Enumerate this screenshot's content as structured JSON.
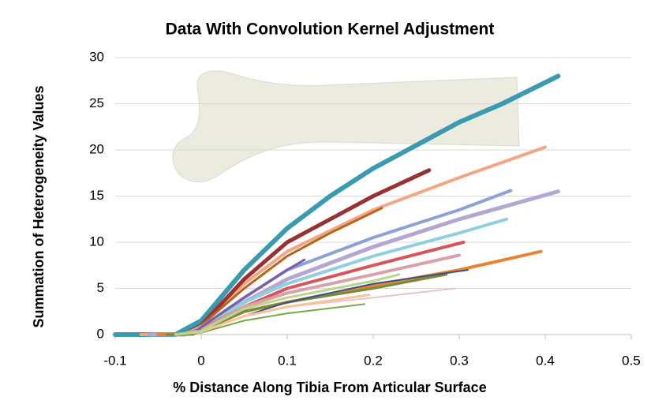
{
  "chart_data": {
    "type": "line",
    "title": "Data With Convolution Kernel Adjustment",
    "x_label": "% Distance Along Tibia From Articular Surface",
    "y_label": "Summation of Heterogeneity Values",
    "xlim": [
      -0.1,
      0.5
    ],
    "xticks": [
      -0.1,
      0,
      0.1,
      0.2,
      0.3,
      0.4,
      0.5
    ],
    "ylim": [
      0,
      30
    ],
    "yticks": [
      0,
      5,
      10,
      15,
      20,
      25,
      30
    ],
    "grid": true,
    "series": [
      {
        "color": "#3a9bb0",
        "x": [
          -0.1,
          -0.03,
          0,
          0.05,
          0.1,
          0.15,
          0.2,
          0.25,
          0.3,
          0.35,
          0.4,
          0.415
        ],
        "values": [
          0,
          0,
          1.5,
          7,
          11.5,
          15,
          18,
          20.5,
          23,
          25,
          27.3,
          28
        ]
      },
      {
        "color": "#f4a582",
        "x": [
          -0.07,
          -0.02,
          0,
          0.05,
          0.1,
          0.2,
          0.3,
          0.4
        ],
        "values": [
          0,
          0,
          1,
          5.5,
          9,
          13.5,
          17,
          20.3
        ]
      },
      {
        "color": "#983232",
        "x": [
          -0.06,
          -0.02,
          0,
          0.05,
          0.1,
          0.15,
          0.2,
          0.265
        ],
        "values": [
          0,
          0,
          1,
          6,
          10,
          12.5,
          15,
          17.8
        ]
      },
      {
        "color": "#b5651d",
        "x": [
          -0.05,
          -0.02,
          0,
          0.05,
          0.1,
          0.15,
          0.21
        ],
        "values": [
          0,
          0,
          1,
          5,
          8.5,
          11,
          13.7
        ]
      },
      {
        "color": "#8ea1d6",
        "x": [
          -0.06,
          -0.02,
          0,
          0.05,
          0.1,
          0.2,
          0.3,
          0.36
        ],
        "values": [
          0,
          0,
          0.8,
          4,
          7,
          10.5,
          13.5,
          15.6
        ]
      },
      {
        "color": "#b4a7d0",
        "x": [
          -0.06,
          -0.02,
          0,
          0.05,
          0.1,
          0.2,
          0.3,
          0.415
        ],
        "values": [
          0,
          0,
          0.8,
          3.5,
          6,
          9.5,
          12.5,
          15.5
        ]
      },
      {
        "color": "#8ecfe0",
        "x": [
          -0.05,
          -0.02,
          0,
          0.05,
          0.1,
          0.2,
          0.3,
          0.355
        ],
        "values": [
          0,
          0,
          0.6,
          3.5,
          5.5,
          8.5,
          11,
          12.5
        ]
      },
      {
        "color": "#d9545a",
        "x": [
          -0.05,
          -0.02,
          0,
          0.05,
          0.1,
          0.2,
          0.305
        ],
        "values": [
          0,
          0,
          0.6,
          3,
          5,
          7.5,
          10
        ]
      },
      {
        "color": "#d9a0a8",
        "x": [
          -0.05,
          -0.02,
          0,
          0.05,
          0.1,
          0.2,
          0.3
        ],
        "values": [
          0,
          0,
          0.5,
          3,
          4.5,
          6.5,
          8.6
        ]
      },
      {
        "color": "#e8822f",
        "x": [
          -0.05,
          -0.02,
          0,
          0.05,
          0.1,
          0.2,
          0.3,
          0.395
        ],
        "values": [
          0,
          0,
          0.4,
          2.5,
          3.5,
          5.3,
          7,
          9
        ]
      },
      {
        "color": "#7a5fa8",
        "x": [
          -0.04,
          -0.01,
          0,
          0.05,
          0.1,
          0.12
        ],
        "values": [
          0,
          0,
          0.8,
          4,
          7,
          8.1
        ]
      },
      {
        "color": "#6f8f3a",
        "x": [
          -0.04,
          -0.01,
          0,
          0.05,
          0.1,
          0.2,
          0.285
        ],
        "values": [
          0,
          0,
          0.4,
          2.5,
          3.5,
          5,
          6.5
        ]
      },
      {
        "color": "#3b4f8a",
        "x": [
          0,
          0.05,
          0.1,
          0.2,
          0.31
        ],
        "values": [
          0.3,
          2,
          3.5,
          5.5,
          7
        ]
      },
      {
        "color": "#e8c4c8",
        "x": [
          0,
          0.05,
          0.1,
          0.2,
          0.295
        ],
        "values": [
          0.3,
          2,
          3,
          4,
          5
        ]
      },
      {
        "color": "#79a847",
        "x": [
          -0.03,
          0,
          0.05,
          0.1,
          0.19
        ],
        "values": [
          0,
          0.2,
          1.5,
          2.3,
          3.3
        ]
      },
      {
        "color": "#f6c49a",
        "x": [
          -0.03,
          0,
          0.05,
          0.1,
          0.195
        ],
        "values": [
          0,
          0.3,
          2,
          3,
          4.3
        ]
      },
      {
        "color": "#b9d68a",
        "x": [
          -0.03,
          0,
          0.05,
          0.1,
          0.2,
          0.23
        ],
        "values": [
          0,
          0.4,
          2.8,
          4,
          5.8,
          6.5
        ]
      }
    ]
  }
}
